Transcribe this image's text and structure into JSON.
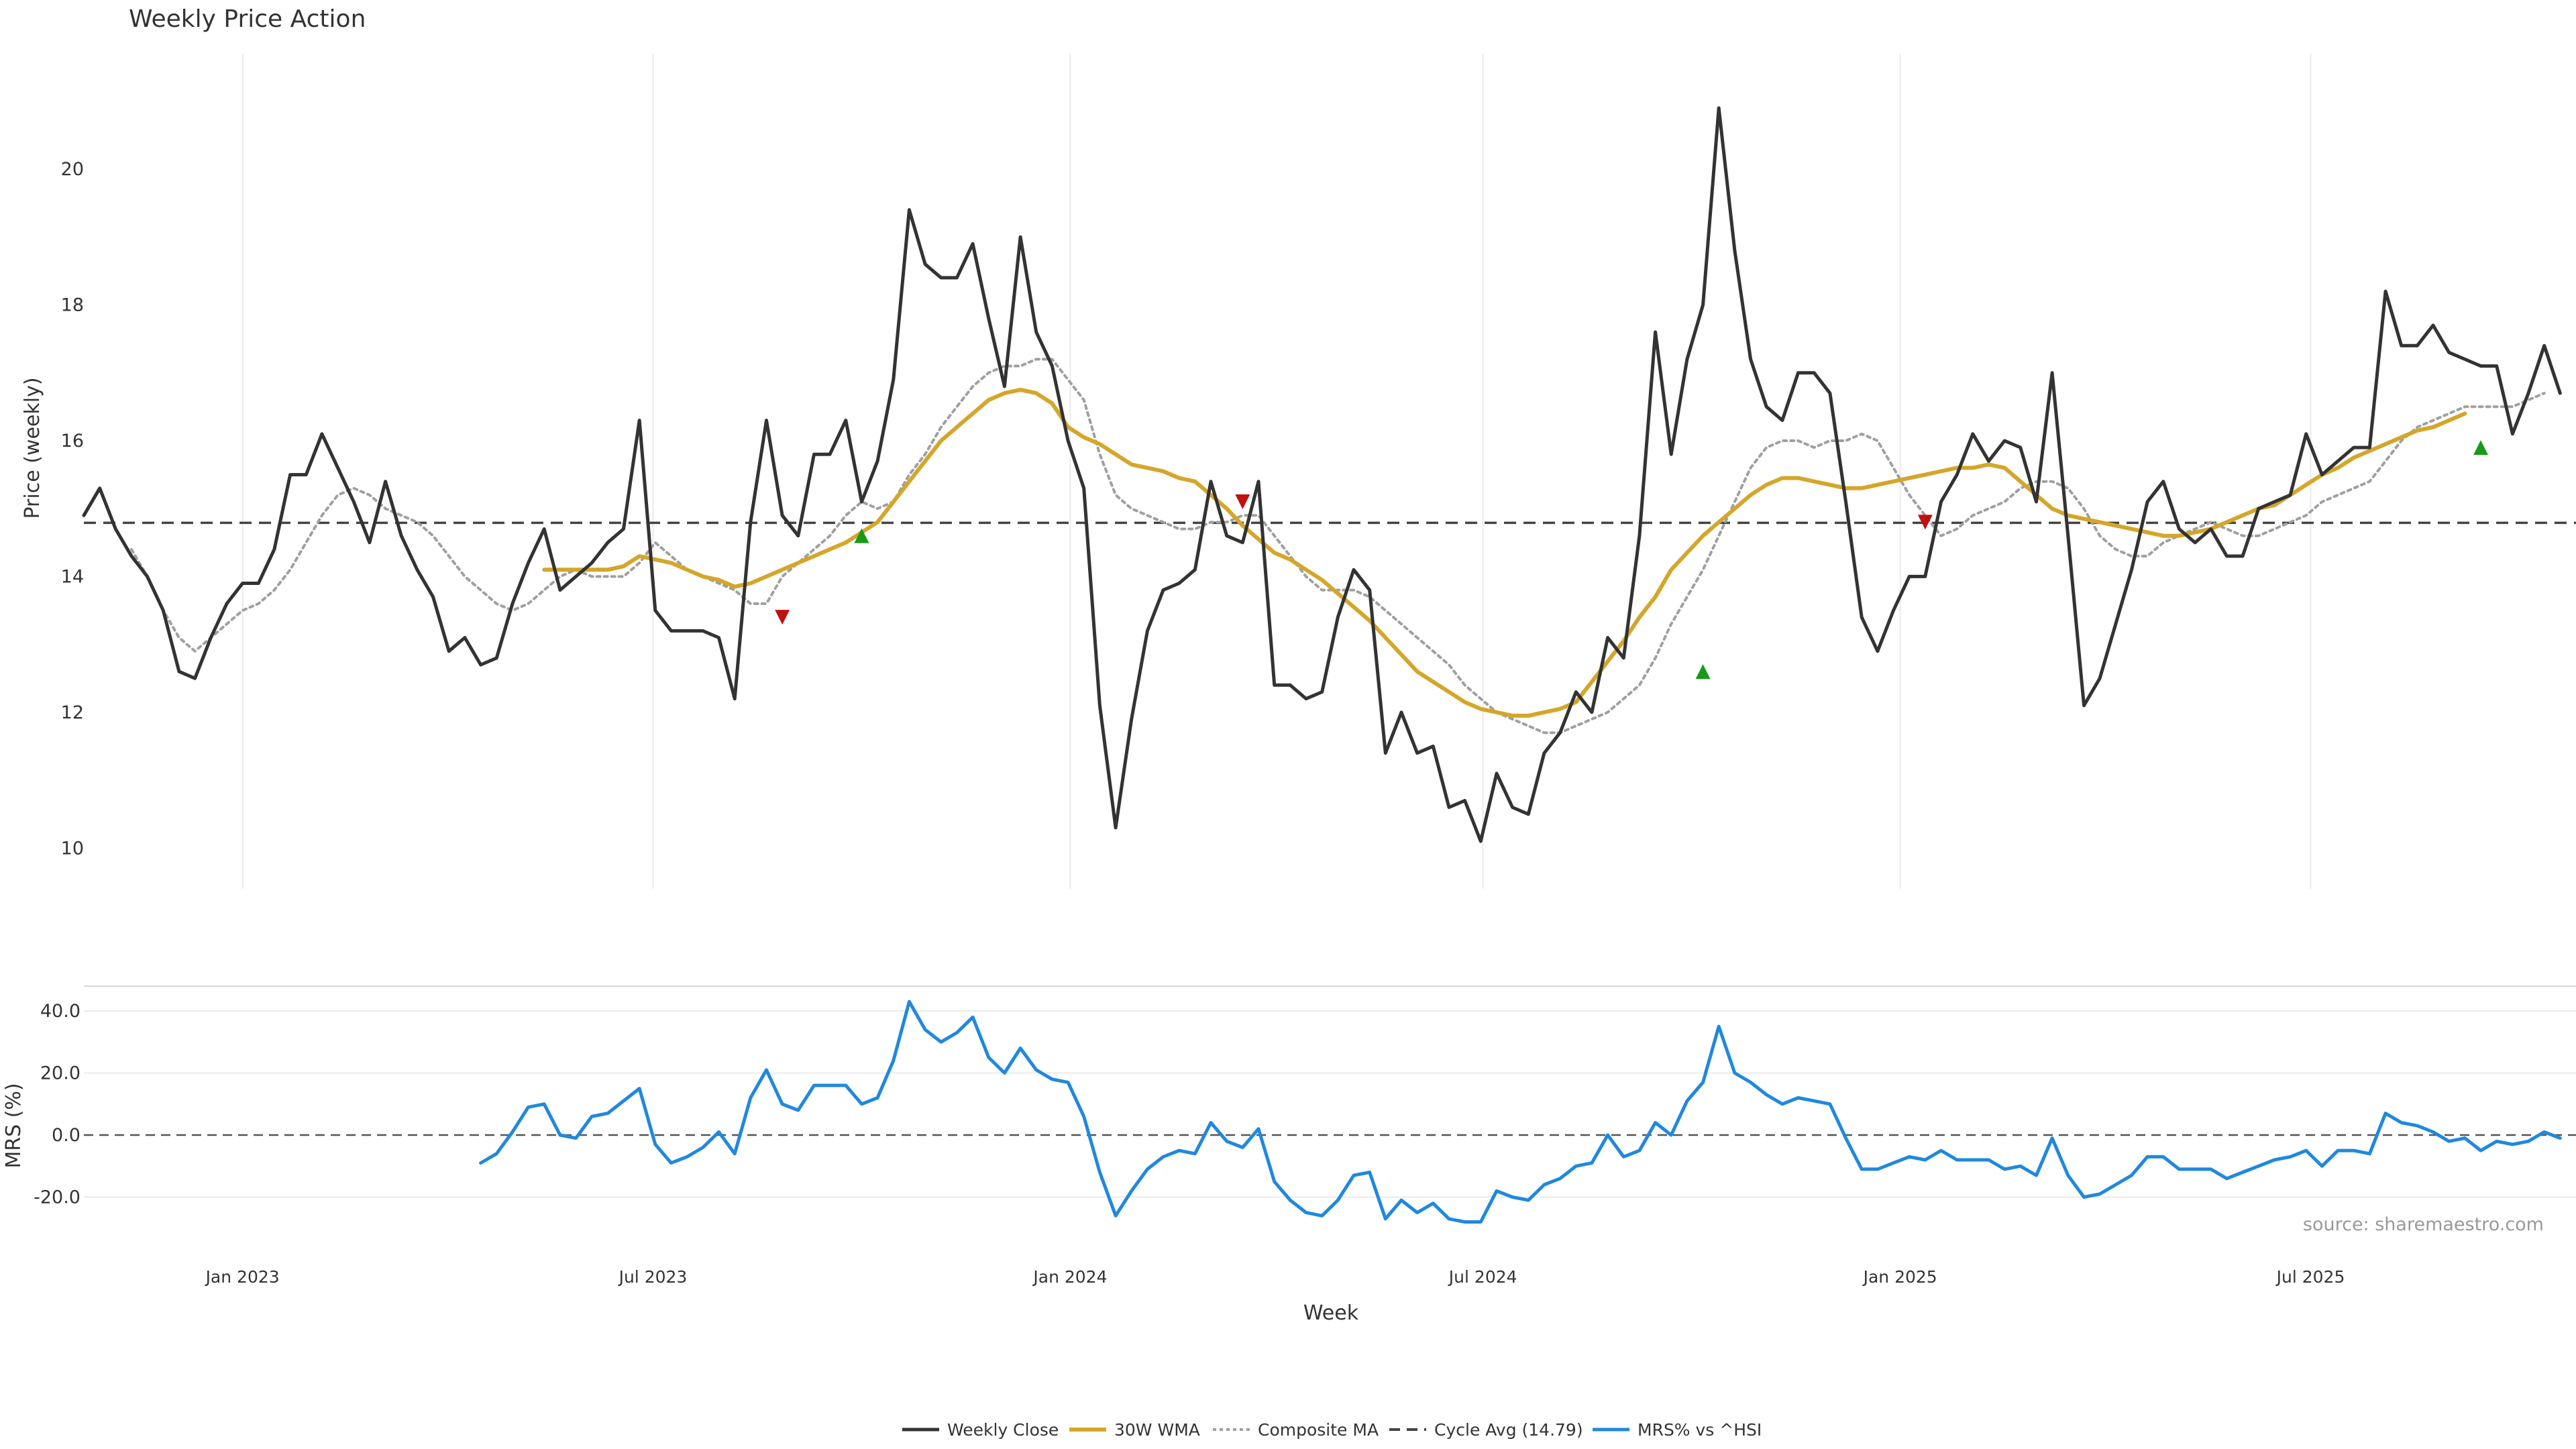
{
  "chart_data": {
    "type": "line",
    "title": "Weekly Price Action",
    "xlabel": "Week",
    "source_note": "source: sharemaestro.com",
    "x_ticks": [
      "Jan 2023",
      "Jul 2023",
      "Jan 2024",
      "Jul 2024",
      "Jan 2025",
      "Jul 2025"
    ],
    "x_tick_dates": [
      "2023-01-01",
      "2023-07-01",
      "2024-01-01",
      "2024-07-01",
      "2025-01-01",
      "2025-07-01"
    ],
    "x_range": [
      "2022-10-23",
      "2025-10-26"
    ],
    "grid": true,
    "legend_position": "bottom-center",
    "colors": {
      "close": "#333333",
      "wma": "#d4a62a",
      "composite": "#a0a0a0",
      "cycle": "#444444",
      "mrs": "#2188dd",
      "buy": "#1a9a1a",
      "sell": "#c01010",
      "grid": "#ebebeb"
    },
    "price_panel": {
      "ylabel": "Price (weekly)",
      "ylim": [
        9.4,
        21.7
      ],
      "y_ticks": [
        10,
        12,
        14,
        16,
        18,
        20
      ],
      "series": [
        {
          "name": "Weekly Close",
          "key": "close",
          "start": "2022-10-23",
          "values": [
            14.9,
            15.3,
            14.7,
            14.3,
            14.0,
            13.5,
            12.6,
            12.5,
            13.1,
            13.6,
            13.9,
            13.9,
            14.4,
            15.5,
            15.5,
            16.1,
            15.6,
            15.1,
            14.5,
            15.4,
            14.6,
            14.1,
            13.7,
            12.9,
            13.1,
            12.7,
            12.8,
            13.6,
            14.2,
            14.7,
            13.8,
            14.0,
            14.2,
            14.5,
            14.7,
            16.3,
            13.5,
            13.2,
            13.2,
            13.2,
            13.1,
            12.2,
            14.8,
            16.3,
            14.9,
            14.6,
            15.8,
            15.8,
            16.3,
            15.1,
            15.7,
            16.9,
            19.4,
            18.6,
            18.4,
            18.4,
            18.9,
            17.8,
            16.8,
            19.0,
            17.6,
            17.1,
            16.0,
            15.3,
            12.1,
            10.3,
            11.9,
            13.2,
            13.8,
            13.9,
            14.1,
            15.4,
            14.6,
            14.5,
            15.4,
            12.4,
            12.4,
            12.2,
            12.3,
            13.4,
            14.1,
            13.8,
            11.4,
            12.0,
            11.4,
            11.5,
            10.6,
            10.7,
            10.1,
            11.1,
            10.6,
            10.5,
            11.4,
            11.7,
            12.3,
            12.0,
            13.1,
            12.8,
            14.6,
            17.6,
            15.8,
            17.2,
            18.0,
            20.9,
            18.8,
            17.2,
            16.5,
            16.3,
            17.0,
            17.0,
            16.7,
            15.1,
            13.4,
            12.9,
            13.5,
            14.0,
            14.0,
            15.1,
            15.5,
            16.1,
            15.7,
            16.0,
            15.9,
            15.1,
            17.0,
            14.6,
            12.1,
            12.5,
            13.3,
            14.1,
            15.1,
            15.4,
            14.7,
            14.5,
            14.7,
            14.3,
            14.3,
            15.0,
            15.1,
            15.2,
            16.1,
            15.5,
            15.7,
            15.9,
            15.9,
            18.2,
            17.4,
            17.4,
            17.7,
            17.3,
            17.2,
            17.1,
            17.1,
            16.1,
            16.7,
            17.4,
            16.7
          ]
        },
        {
          "name": "30W WMA",
          "key": "wma",
          "start": "2023-05-14",
          "values": [
            14.1,
            14.1,
            14.1,
            14.1,
            14.1,
            14.15,
            14.3,
            14.25,
            14.2,
            14.1,
            14.0,
            13.95,
            13.85,
            13.9,
            14.0,
            14.1,
            14.2,
            14.3,
            14.4,
            14.5,
            14.65,
            14.8,
            15.1,
            15.4,
            15.7,
            16.0,
            16.2,
            16.4,
            16.6,
            16.7,
            16.75,
            16.7,
            16.55,
            16.2,
            16.05,
            15.95,
            15.8,
            15.65,
            15.6,
            15.55,
            15.45,
            15.4,
            15.2,
            15.0,
            14.75,
            14.55,
            14.35,
            14.25,
            14.1,
            13.95,
            13.75,
            13.55,
            13.35,
            13.1,
            12.85,
            12.6,
            12.45,
            12.3,
            12.15,
            12.05,
            12.0,
            11.95,
            11.95,
            12.0,
            12.05,
            12.15,
            12.45,
            12.75,
            13.05,
            13.4,
            13.7,
            14.1,
            14.35,
            14.6,
            14.8,
            15.0,
            15.2,
            15.35,
            15.45,
            15.45,
            15.4,
            15.35,
            15.3,
            15.3,
            15.35,
            15.4,
            15.45,
            15.5,
            15.55,
            15.6,
            15.6,
            15.65,
            15.6,
            15.4,
            15.2,
            15.0,
            14.9,
            14.85,
            14.8,
            14.75,
            14.7,
            14.65,
            14.6,
            14.6,
            14.65,
            14.7,
            14.8,
            14.9,
            15.0,
            15.05,
            15.2,
            15.35,
            15.5,
            15.6,
            15.75,
            15.85,
            15.95,
            16.05,
            16.15,
            16.2,
            16.3,
            16.4
          ]
        },
        {
          "name": "Composite MA",
          "key": "composite",
          "start": "2022-11-13",
          "values": [
            14.4,
            14.0,
            13.5,
            13.1,
            12.9,
            13.1,
            13.3,
            13.5,
            13.6,
            13.8,
            14.1,
            14.5,
            14.9,
            15.2,
            15.3,
            15.2,
            15.0,
            14.9,
            14.8,
            14.6,
            14.3,
            14.0,
            13.8,
            13.6,
            13.5,
            13.6,
            13.8,
            14.0,
            14.1,
            14.0,
            14.0,
            14.0,
            14.2,
            14.5,
            14.3,
            14.1,
            14.0,
            13.9,
            13.8,
            13.6,
            13.6,
            14.0,
            14.2,
            14.4,
            14.6,
            14.9,
            15.1,
            15.0,
            15.1,
            15.5,
            15.8,
            16.2,
            16.5,
            16.8,
            17.0,
            17.1,
            17.1,
            17.2,
            17.2,
            16.9,
            16.6,
            15.8,
            15.2,
            15.0,
            14.9,
            14.8,
            14.7,
            14.7,
            14.8,
            14.8,
            14.9,
            14.9,
            14.6,
            14.3,
            14.0,
            13.8,
            13.8,
            13.8,
            13.7,
            13.5,
            13.3,
            13.1,
            12.9,
            12.7,
            12.4,
            12.2,
            12.0,
            11.9,
            11.8,
            11.7,
            11.7,
            11.8,
            11.9,
            12.0,
            12.2,
            12.4,
            12.8,
            13.3,
            13.7,
            14.1,
            14.6,
            15.1,
            15.6,
            15.9,
            16.0,
            16.0,
            15.9,
            16.0,
            16.0,
            16.1,
            16.0,
            15.6,
            15.2,
            14.9,
            14.6,
            14.7,
            14.9,
            15.0,
            15.1,
            15.3,
            15.4,
            15.4,
            15.3,
            15.0,
            14.6,
            14.4,
            14.3,
            14.3,
            14.5,
            14.6,
            14.7,
            14.8,
            14.7,
            14.6,
            14.6,
            14.7,
            14.8,
            14.9,
            15.1,
            15.2,
            15.3,
            15.4,
            15.7,
            16.0,
            16.2,
            16.3,
            16.4,
            16.5,
            16.5,
            16.5,
            16.5,
            16.6,
            16.7
          ]
        },
        {
          "name": "Cycle Avg (14.79)",
          "key": "cycle",
          "value": 14.79
        }
      ],
      "signals": [
        {
          "type": "sell",
          "date": "2023-08-27",
          "value": 13.4
        },
        {
          "type": "buy",
          "date": "2023-10-01",
          "value": 14.6
        },
        {
          "type": "sell",
          "date": "2024-03-17",
          "value": 15.1
        },
        {
          "type": "buy",
          "date": "2024-10-06",
          "value": 12.6
        },
        {
          "type": "sell",
          "date": "2025-01-12",
          "value": 14.8
        },
        {
          "type": "buy",
          "date": "2025-09-14",
          "value": 15.9
        }
      ]
    },
    "mrs_panel": {
      "ylabel": "MRS (%)",
      "ylim": [
        -32,
        48
      ],
      "y_ticks": [
        "40.0",
        "20.0",
        "0.0",
        "-20.0"
      ],
      "y_tick_values": [
        40,
        20,
        0,
        -20
      ],
      "series": [
        {
          "name": "MRS% vs ^HSI",
          "key": "mrs",
          "start": "2023-04-16",
          "values": [
            -9,
            -6,
            1,
            9,
            10,
            0,
            -1,
            6,
            7,
            11,
            15,
            -3,
            -9,
            -7,
            -4,
            1,
            -6,
            12,
            21,
            10,
            8,
            16,
            16,
            16,
            10,
            12,
            24,
            43,
            34,
            30,
            33,
            38,
            25,
            20,
            28,
            21,
            18,
            17,
            6,
            -12,
            -26,
            -18,
            -11,
            -7,
            -5,
            -6,
            4,
            -2,
            -4,
            2,
            -15,
            -21,
            -25,
            -26,
            -21,
            -13,
            -12,
            -27,
            -21,
            -25,
            -22,
            -27,
            -28,
            -28,
            -18,
            -20,
            -21,
            -16,
            -14,
            -10,
            -9,
            0,
            -7,
            -5,
            4,
            0,
            11,
            17,
            35,
            20,
            17,
            13,
            10,
            12,
            11,
            10,
            -1,
            -11,
            -11,
            -9,
            -7,
            -8,
            -5,
            -8,
            -8,
            -8,
            -11,
            -10,
            -13,
            -1,
            -13,
            -20,
            -19,
            -16,
            -13,
            -7,
            -7,
            -11,
            -11,
            -11,
            -14,
            -12,
            -10,
            -8,
            -7,
            -5,
            -10,
            -5,
            -5,
            -6,
            7,
            4,
            3,
            1,
            -2,
            -1,
            -5,
            -2,
            -3,
            -2,
            1,
            -1
          ]
        }
      ]
    }
  }
}
